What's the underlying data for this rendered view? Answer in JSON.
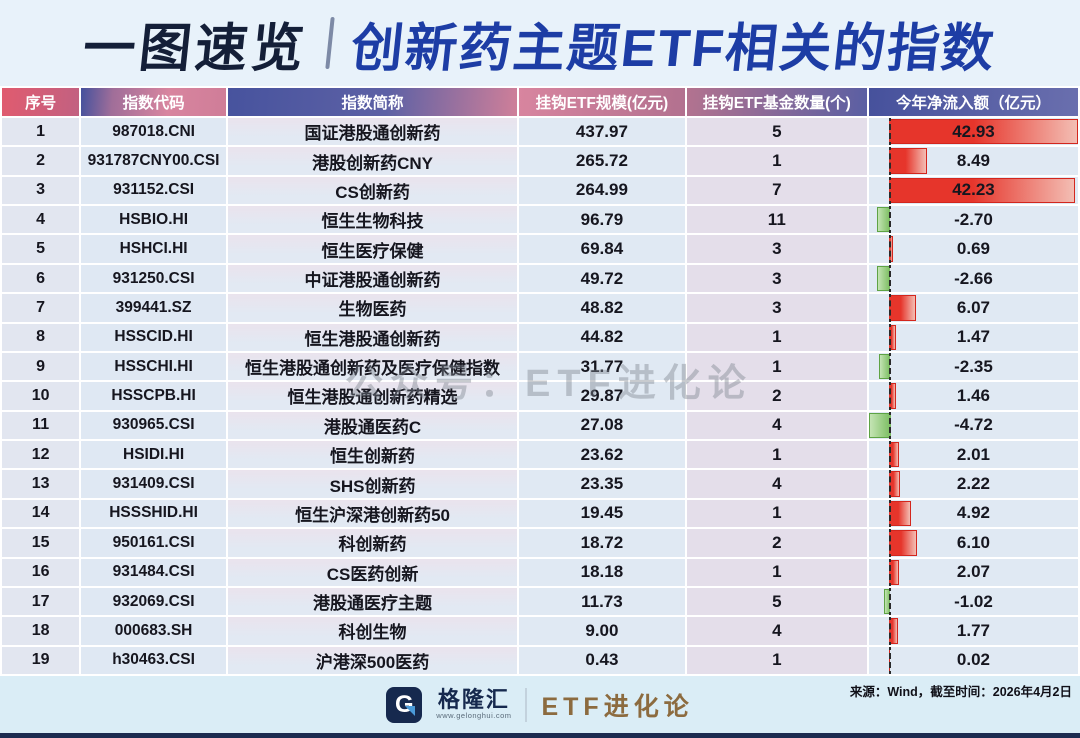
{
  "title": {
    "badge": "一图速览",
    "divider": "|",
    "main": "创新药主题ETF相关的指数"
  },
  "watermark": "公众号：ETF进化论",
  "table": {
    "columns": [
      "序号",
      "指数代码",
      "指数简称",
      "挂钩ETF规模(亿元)",
      "挂钩ETF基金数量(个)",
      "今年净流入额（亿元）"
    ],
    "inflow_axis_max": 43,
    "rows": [
      {
        "no": "1",
        "code": "987018.CNI",
        "name": "国证港股通创新药",
        "scale": "437.97",
        "funds": "5",
        "inflow": "42.93"
      },
      {
        "no": "2",
        "code": "931787CNY00.CSI",
        "name": "港股创新药CNY",
        "scale": "265.72",
        "funds": "1",
        "inflow": "8.49"
      },
      {
        "no": "3",
        "code": "931152.CSI",
        "name": "CS创新药",
        "scale": "264.99",
        "funds": "7",
        "inflow": "42.23"
      },
      {
        "no": "4",
        "code": "HSBIO.HI",
        "name": "恒生生物科技",
        "scale": "96.79",
        "funds": "11",
        "inflow": "-2.70"
      },
      {
        "no": "5",
        "code": "HSHCI.HI",
        "name": "恒生医疗保健",
        "scale": "69.84",
        "funds": "3",
        "inflow": "0.69"
      },
      {
        "no": "6",
        "code": "931250.CSI",
        "name": "中证港股通创新药",
        "scale": "49.72",
        "funds": "3",
        "inflow": "-2.66"
      },
      {
        "no": "7",
        "code": "399441.SZ",
        "name": "生物医药",
        "scale": "48.82",
        "funds": "3",
        "inflow": "6.07"
      },
      {
        "no": "8",
        "code": "HSSCID.HI",
        "name": "恒生港股通创新药",
        "scale": "44.82",
        "funds": "1",
        "inflow": "1.47"
      },
      {
        "no": "9",
        "code": "HSSCHI.HI",
        "name": "恒生港股通创新药及医疗保健指数",
        "scale": "31.77",
        "funds": "1",
        "inflow": "-2.35"
      },
      {
        "no": "10",
        "code": "HSSCPB.HI",
        "name": "恒生港股通创新药精选",
        "scale": "29.87",
        "funds": "2",
        "inflow": "1.46"
      },
      {
        "no": "11",
        "code": "930965.CSI",
        "name": "港股通医药C",
        "scale": "27.08",
        "funds": "4",
        "inflow": "-4.72"
      },
      {
        "no": "12",
        "code": "HSIDI.HI",
        "name": "恒生创新药",
        "scale": "23.62",
        "funds": "1",
        "inflow": "2.01"
      },
      {
        "no": "13",
        "code": "931409.CSI",
        "name": "SHS创新药",
        "scale": "23.35",
        "funds": "4",
        "inflow": "2.22"
      },
      {
        "no": "14",
        "code": "HSSSHID.HI",
        "name": "恒生沪深港创新药50",
        "scale": "19.45",
        "funds": "1",
        "inflow": "4.92"
      },
      {
        "no": "15",
        "code": "950161.CSI",
        "name": "科创新药",
        "scale": "18.72",
        "funds": "2",
        "inflow": "6.10"
      },
      {
        "no": "16",
        "code": "931484.CSI",
        "name": "CS医药创新",
        "scale": "18.18",
        "funds": "1",
        "inflow": "2.07"
      },
      {
        "no": "17",
        "code": "932069.CSI",
        "name": "港股通医疗主题",
        "scale": "11.73",
        "funds": "5",
        "inflow": "-1.02"
      },
      {
        "no": "18",
        "code": "000683.SH",
        "name": "科创生物",
        "scale": "9.00",
        "funds": "4",
        "inflow": "1.77"
      },
      {
        "no": "19",
        "code": "h30463.CSI",
        "name": "沪港深500医药",
        "scale": "0.43",
        "funds": "1",
        "inflow": "0.02"
      }
    ]
  },
  "chart_data": {
    "type": "table",
    "title": "创新药主题ETF相关的指数",
    "columns": [
      "序号",
      "指数代码",
      "指数简称",
      "挂钩ETF规模(亿元)",
      "挂钩ETF基金数量(个)",
      "今年净流入额（亿元）"
    ],
    "rows": [
      [
        1,
        "987018.CNI",
        "国证港股通创新药",
        437.97,
        5,
        42.93
      ],
      [
        2,
        "931787CNY00.CSI",
        "港股创新药CNY",
        265.72,
        1,
        8.49
      ],
      [
        3,
        "931152.CSI",
        "CS创新药",
        264.99,
        7,
        42.23
      ],
      [
        4,
        "HSBIO.HI",
        "恒生生物科技",
        96.79,
        11,
        -2.7
      ],
      [
        5,
        "HSHCI.HI",
        "恒生医疗保健",
        69.84,
        3,
        0.69
      ],
      [
        6,
        "931250.CSI",
        "中证港股通创新药",
        49.72,
        3,
        -2.66
      ],
      [
        7,
        "399441.SZ",
        "生物医药",
        48.82,
        3,
        6.07
      ],
      [
        8,
        "HSSCID.HI",
        "恒生港股通创新药",
        44.82,
        1,
        1.47
      ],
      [
        9,
        "HSSCHI.HI",
        "恒生港股通创新药及医疗保健指数",
        31.77,
        1,
        -2.35
      ],
      [
        10,
        "HSSCPB.HI",
        "恒生港股通创新药精选",
        29.87,
        2,
        1.46
      ],
      [
        11,
        "930965.CSI",
        "港股通医药C",
        27.08,
        4,
        -4.72
      ],
      [
        12,
        "HSIDI.HI",
        "恒生创新药",
        23.62,
        1,
        2.01
      ],
      [
        13,
        "931409.CSI",
        "SHS创新药",
        23.35,
        4,
        2.22
      ],
      [
        14,
        "HSSSHID.HI",
        "恒生沪深港创新药50",
        19.45,
        1,
        4.92
      ],
      [
        15,
        "950161.CSI",
        "科创新药",
        18.72,
        2,
        6.1
      ],
      [
        16,
        "931484.CSI",
        "CS医药创新",
        18.18,
        1,
        2.07
      ],
      [
        17,
        "932069.CSI",
        "港股通医疗主题",
        11.73,
        5,
        -1.02
      ],
      [
        18,
        "000683.SH",
        "科创生物",
        9.0,
        4,
        1.77
      ],
      [
        19,
        "h30463.CSI",
        "沪港深500医药",
        0.43,
        1,
        0.02
      ]
    ],
    "bar_column": "今年净流入额（亿元）",
    "bar_axis_max": 43,
    "positive_color": "#e6352b",
    "negative_color": "#7abd60"
  },
  "footer": {
    "source": "来源：Wind，截至时间：2026年4月2日",
    "logo_letter": "G",
    "logo_text": "格隆汇",
    "logo_url": "www.gelonghui.com",
    "brand": "ETF进化论"
  }
}
